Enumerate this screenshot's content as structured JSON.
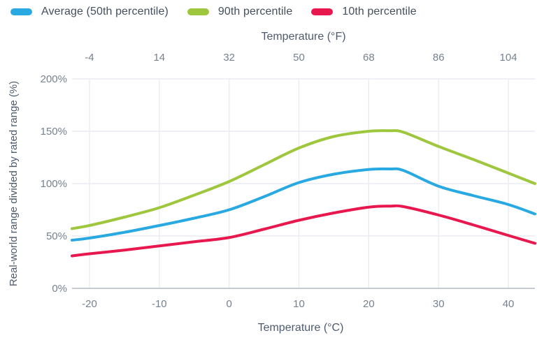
{
  "chart_data": {
    "type": "line",
    "top_axis_title": "Temperature (°F)",
    "bottom_axis_title": "Temperature (°C)",
    "ylabel": "Real-world range divided by rated range (%)",
    "x_axis_c": {
      "ticks": [
        -20,
        -10,
        0,
        10,
        20,
        30,
        40
      ],
      "labels": [
        "-20",
        "-10",
        "0",
        "10",
        "20",
        "30",
        "40"
      ]
    },
    "x_axis_f": {
      "labels": [
        "-4",
        "14",
        "32",
        "50",
        "68",
        "86",
        "104"
      ]
    },
    "y_axis": {
      "ticks": [
        0,
        50,
        100,
        150,
        200
      ],
      "labels": [
        "0%",
        "50%",
        "100%",
        "150%",
        "200%"
      ]
    },
    "xlim": [
      -22.5,
      43.8
    ],
    "ylim": [
      0,
      200
    ],
    "grid": true,
    "legend_position": "top-left",
    "x": [
      -22.5,
      -20,
      -15,
      -10,
      -5,
      0,
      5,
      10,
      15,
      20,
      23,
      25,
      30,
      35,
      40,
      43.8
    ],
    "series": [
      {
        "name": "Average (50th percentile)",
        "color": "#29a9e1",
        "values": [
          46,
          48,
          53.5,
          60,
          67,
          75,
          87.5,
          101,
          109,
          113.5,
          114,
          112.5,
          97.5,
          88.5,
          80,
          71
        ]
      },
      {
        "name": "90th percentile",
        "color": "#9ec73d",
        "values": [
          57,
          60,
          68,
          77,
          89,
          102,
          118,
          134,
          145,
          150,
          150.5,
          149,
          135.5,
          123,
          110,
          100
        ]
      },
      {
        "name": "10th percentile",
        "color": "#e8184f",
        "values": [
          31,
          33,
          36.5,
          40.5,
          44.5,
          48.5,
          56.5,
          65,
          72,
          77.5,
          78.5,
          78,
          70,
          60.5,
          50.5,
          43
        ]
      }
    ],
    "grid_color": "#eaecf2",
    "zero_line_color": "#c6cbd3"
  }
}
